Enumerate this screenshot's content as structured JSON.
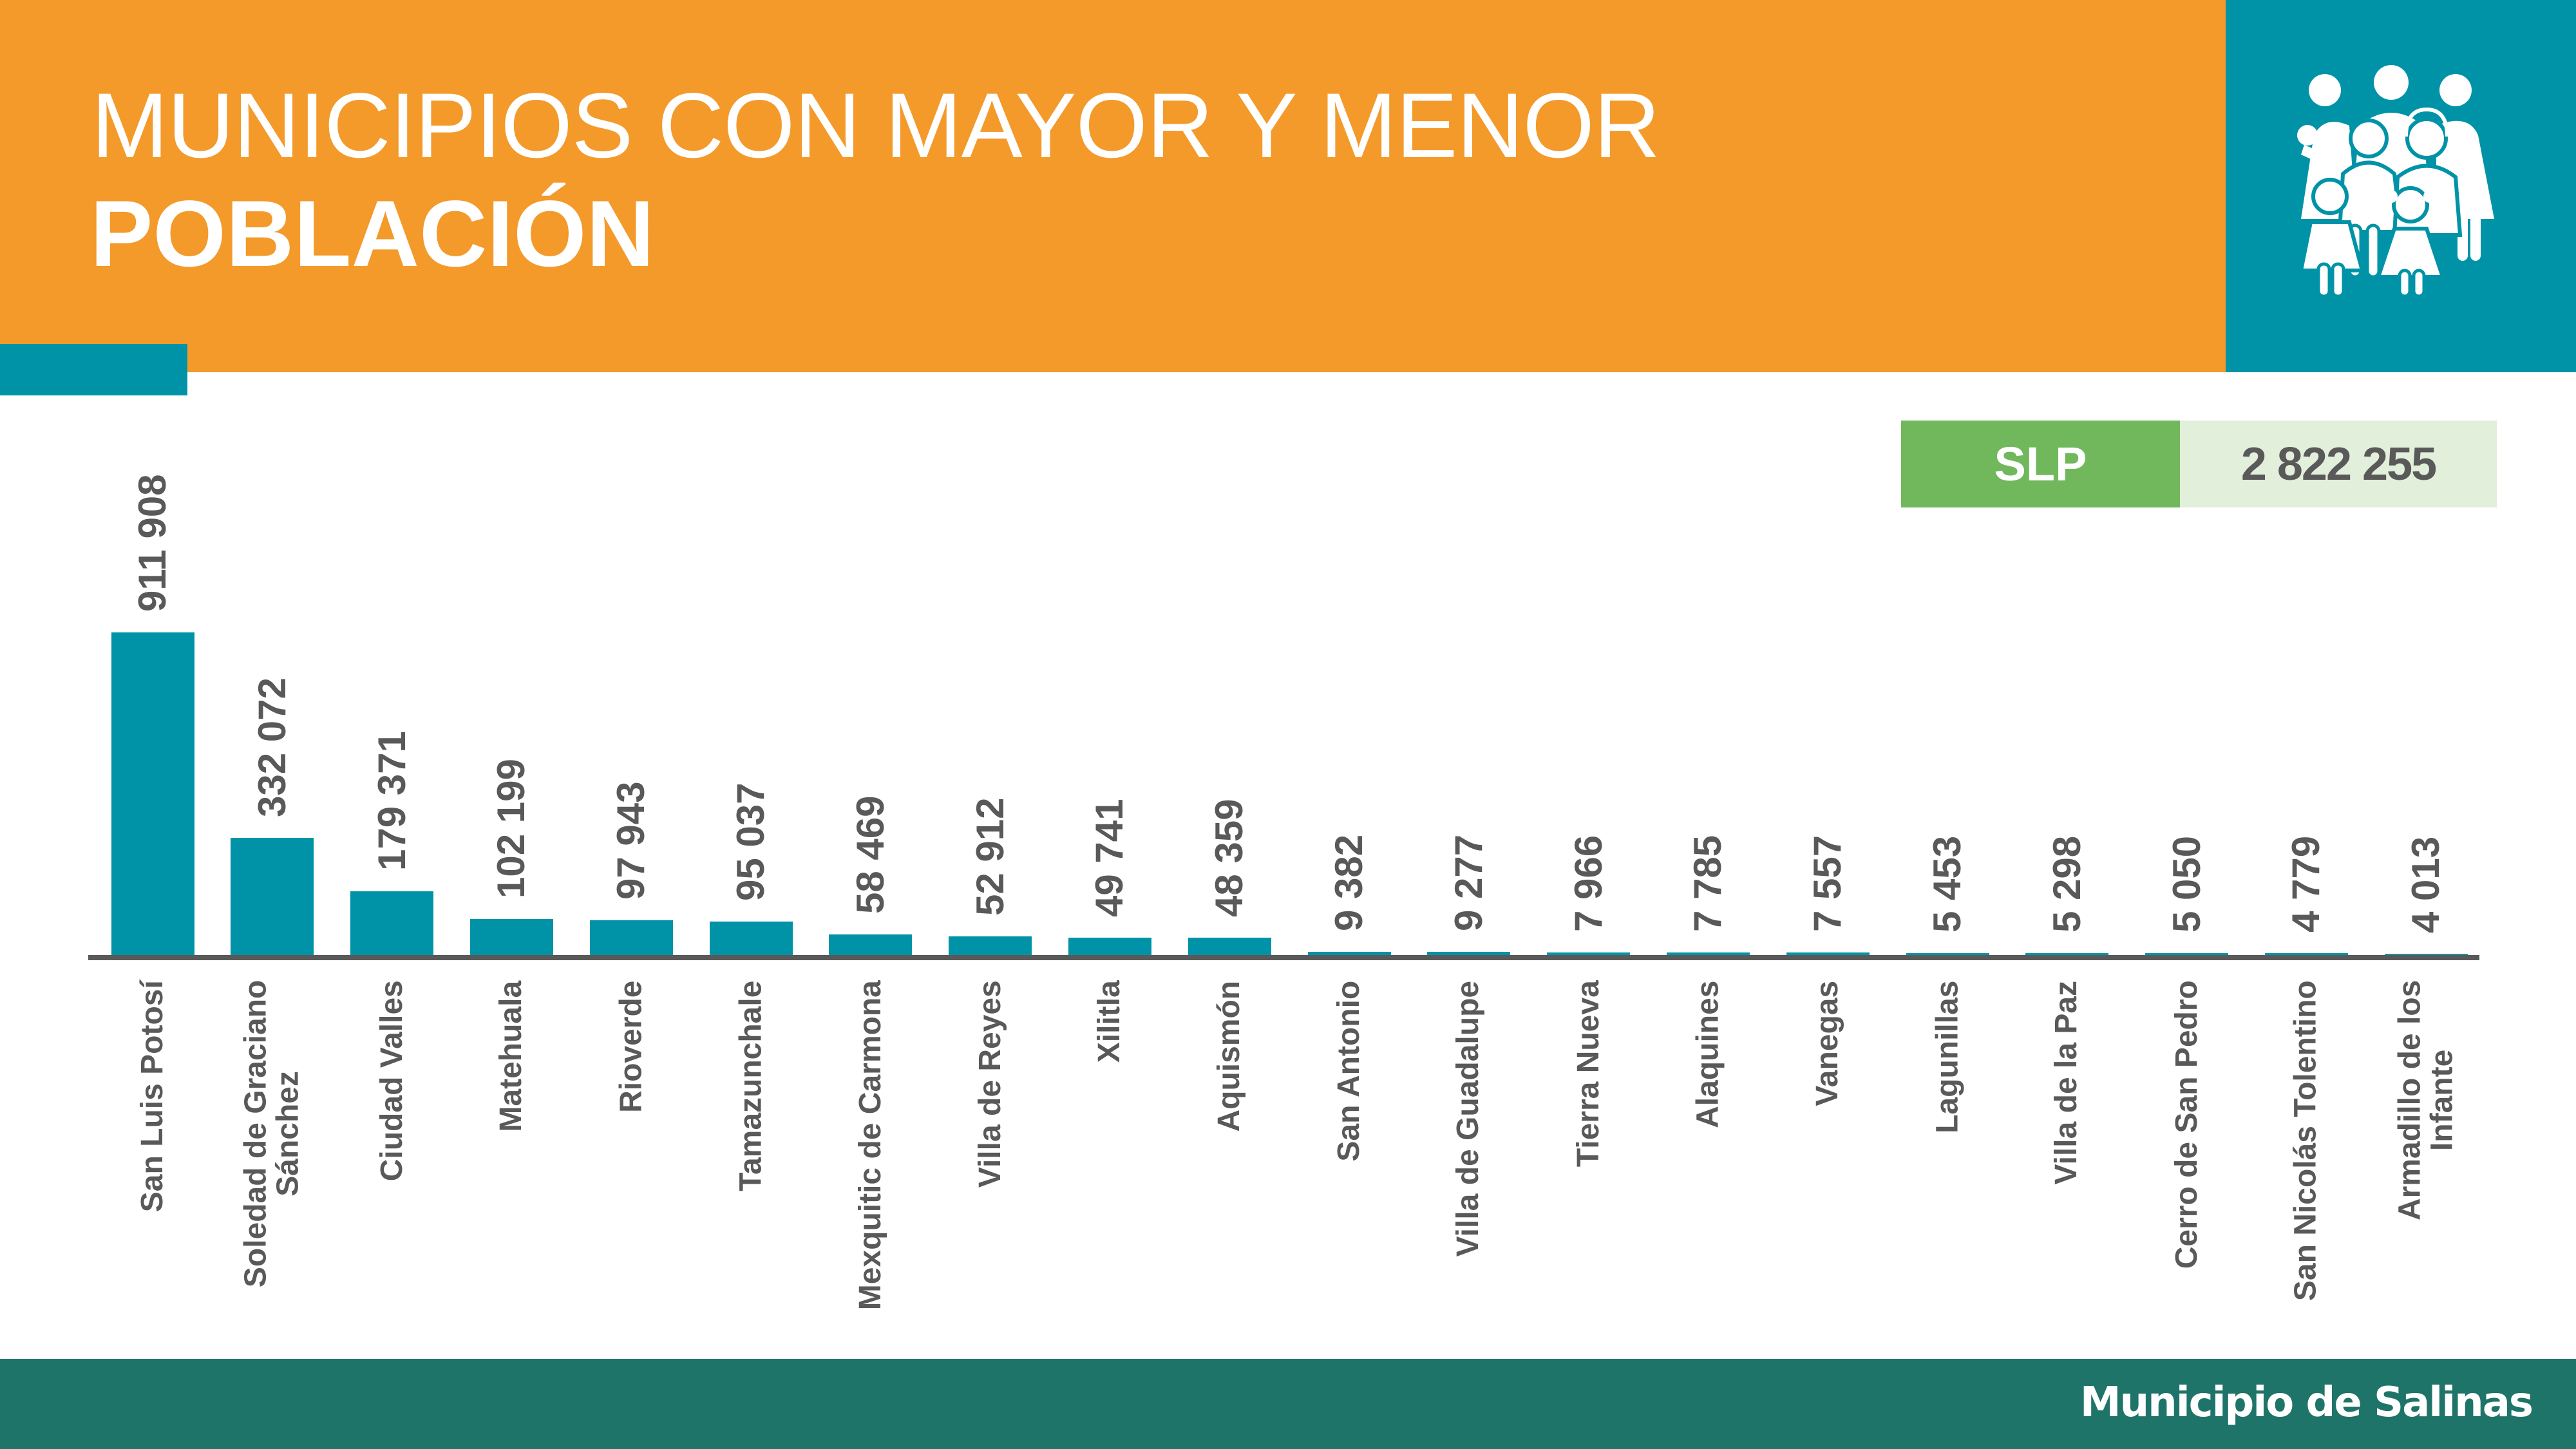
{
  "header": {
    "title_line1": "MUNICIPIOS CON MAYOR Y MENOR",
    "title_line2": "POBLACIÓN",
    "icon": "family-people-icon"
  },
  "total": {
    "label": "SLP",
    "value": "2 822 255"
  },
  "footer": {
    "text": "Municipio de Salinas"
  },
  "colors": {
    "header_orange": "#F39A2B",
    "accent_teal": "#0093A7",
    "bar_teal": "#0093A7",
    "total_label_green": "#71B85C",
    "total_value_bg": "#E2EFDA",
    "footer_green": "#1F7469",
    "text_gray": "#595959"
  },
  "chart_data": {
    "type": "bar",
    "title": "MUNICIPIOS CON MAYOR Y MENOR POBLACIÓN",
    "xlabel": "",
    "ylabel": "",
    "grid": false,
    "legend": null,
    "categories": [
      "San Luis Potosí",
      "Soledad de Graciano Sánchez",
      "Ciudad Valles",
      "Matehuala",
      "Rioverde",
      "Tamazunchale",
      "Mexquitic de Carmona",
      "Villa de Reyes",
      "Xilitla",
      "Aquismón",
      "San Antonio",
      "Villa de Guadalupe",
      "Tierra Nueva",
      "Alaquines",
      "Vanegas",
      "Lagunillas",
      "Villa de la Paz",
      "Cerro de San Pedro",
      "San Nicolás Tolentino",
      "Armadillo de los Infante"
    ],
    "category_display": [
      "San Luis Potosí",
      "Soledad de Graciano\nSánchez",
      "Ciudad Valles",
      "Matehuala",
      "Rioverde",
      "Tamazunchale",
      "Mexquitic de Carmona",
      "Villa de Reyes",
      "Xilitla",
      "Aquismón",
      "San Antonio",
      "Villa de Guadalupe",
      "Tierra Nueva",
      "Alaquines",
      "Vanegas",
      "Lagunillas",
      "Villa de la Paz",
      "Cerro de San Pedro",
      "San Nicolás Tolentino",
      "Armadillo de los\nInfante"
    ],
    "values": [
      911908,
      332072,
      179371,
      102199,
      97943,
      95037,
      58469,
      52912,
      49741,
      48359,
      9382,
      9277,
      7966,
      7785,
      7557,
      5453,
      5298,
      5050,
      4779,
      4013
    ],
    "value_labels": [
      "911 908",
      "332 072",
      "179 371",
      "102 199",
      "97 943",
      "95 037",
      "58 469",
      "52 912",
      "49 741",
      "48 359",
      "9 382",
      "9 277",
      "7 966",
      "7 785",
      "7 557",
      "5 453",
      "5 298",
      "5 050",
      "4 779",
      "4 013"
    ],
    "ylim": [
      0,
      911908
    ],
    "total_state": {
      "label": "SLP",
      "value": 2822255
    }
  }
}
